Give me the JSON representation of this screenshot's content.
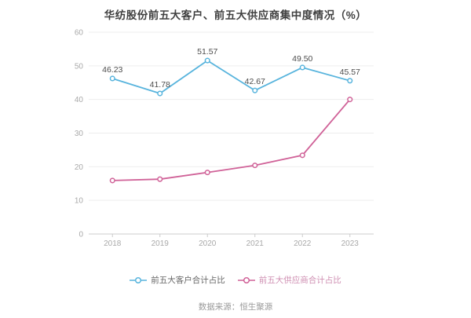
{
  "header": {
    "title": "华纺股份前五大客户、前五大供应商集中度情况（%）"
  },
  "chart_data": {
    "type": "line",
    "title": "华纺股份前五大客户、前五大供应商集中度情况（%）",
    "categories": [
      "2018",
      "2019",
      "2020",
      "2021",
      "2022",
      "2023"
    ],
    "series": [
      {
        "name": "前五大客户合计占比",
        "values": [
          46.23,
          41.78,
          51.57,
          42.67,
          49.5,
          45.57
        ],
        "color": "#58b4dd",
        "legend_text_color": "#666666",
        "show_labels": true
      },
      {
        "name": "前五大供应商合计占比",
        "values": [
          15.9,
          16.3,
          18.3,
          20.4,
          23.4,
          40.0
        ],
        "color": "#d06298",
        "legend_text_color": "#cf8fb2",
        "show_labels": false
      }
    ],
    "xlabel": "",
    "ylabel": "",
    "ylim": [
      0,
      60
    ],
    "y_ticks": [
      0,
      10,
      20,
      30,
      40,
      50,
      60
    ],
    "grid": true,
    "legend_position": "bottom",
    "label_decimals": 2,
    "label_color": "#4c4c4c",
    "axis_line_color": "#cccccc",
    "grid_line_color": "#ededed",
    "tick_label_color": "#a9a9a9"
  },
  "footer": {
    "source": "数据来源：恒生聚源"
  }
}
